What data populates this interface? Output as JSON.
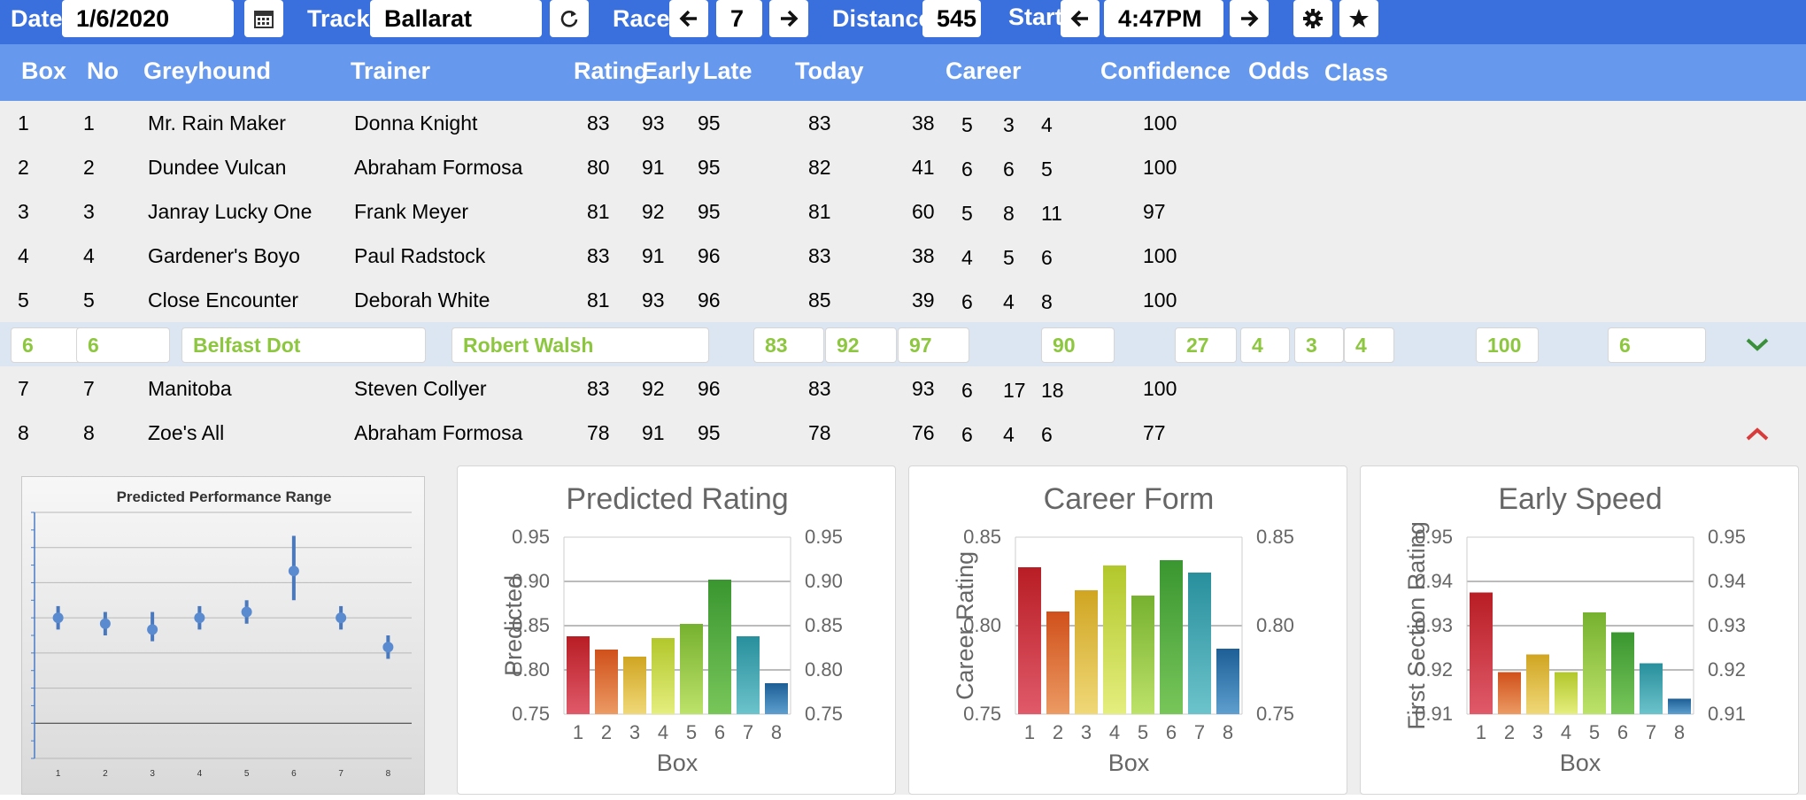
{
  "toolbar": {
    "date_label": "Date",
    "date_value": "1/6/2020",
    "track_label": "Track",
    "track_value": "Ballarat",
    "race_label": "Race",
    "race_value": "7",
    "distance_label": "Distance",
    "distance_value": "545",
    "start_label": "Start",
    "start_value": "4:47PM"
  },
  "table": {
    "headers": [
      "Box",
      "No",
      "Greyhound",
      "Trainer",
      "Rating",
      "Early",
      "Late",
      "Today",
      "Career",
      "Confidence",
      "Odds",
      "Class"
    ],
    "rows": [
      {
        "box": "1",
        "no": "1",
        "greyhound": "Mr. Rain Maker",
        "trainer": "Donna Knight",
        "rating": "83",
        "early": "93",
        "late": "95",
        "today": "83",
        "c1": "38",
        "c2": "5",
        "c3": "3",
        "c4": "4",
        "confidence": "100",
        "odds": ""
      },
      {
        "box": "2",
        "no": "2",
        "greyhound": "Dundee Vulcan",
        "trainer": "Abraham Formosa",
        "rating": "80",
        "early": "91",
        "late": "95",
        "today": "82",
        "c1": "41",
        "c2": "6",
        "c3": "6",
        "c4": "5",
        "confidence": "100",
        "odds": ""
      },
      {
        "box": "3",
        "no": "3",
        "greyhound": "Janray Lucky One",
        "trainer": "Frank Meyer",
        "rating": "81",
        "early": "92",
        "late": "95",
        "today": "81",
        "c1": "60",
        "c2": "5",
        "c3": "8",
        "c4": "11",
        "confidence": "97",
        "odds": ""
      },
      {
        "box": "4",
        "no": "4",
        "greyhound": "Gardener's Boyo",
        "trainer": "Paul Radstock",
        "rating": "83",
        "early": "91",
        "late": "96",
        "today": "83",
        "c1": "38",
        "c2": "4",
        "c3": "5",
        "c4": "6",
        "confidence": "100",
        "odds": ""
      },
      {
        "box": "5",
        "no": "5",
        "greyhound": "Close Encounter",
        "trainer": "Deborah White",
        "rating": "81",
        "early": "93",
        "late": "96",
        "today": "85",
        "c1": "39",
        "c2": "6",
        "c3": "4",
        "c4": "8",
        "confidence": "100",
        "odds": ""
      },
      {
        "box": "6",
        "no": "6",
        "greyhound": "Belfast Dot",
        "trainer": "Robert Walsh",
        "rating": "83",
        "early": "92",
        "late": "97",
        "today": "90",
        "c1": "27",
        "c2": "4",
        "c3": "3",
        "c4": "4",
        "confidence": "100",
        "odds": "6"
      },
      {
        "box": "7",
        "no": "7",
        "greyhound": "Manitoba",
        "trainer": "Steven Collyer",
        "rating": "83",
        "early": "92",
        "late": "96",
        "today": "83",
        "c1": "93",
        "c2": "6",
        "c3": "17",
        "c4": "18",
        "confidence": "100",
        "odds": ""
      },
      {
        "box": "8",
        "no": "8",
        "greyhound": "Zoe's All",
        "trainer": "Abraham Formosa",
        "rating": "78",
        "early": "91",
        "late": "95",
        "today": "78",
        "c1": "76",
        "c2": "6",
        "c3": "4",
        "c4": "6",
        "confidence": "77",
        "odds": ""
      }
    ],
    "selected_row_index": 5
  },
  "colors": {
    "toolbar_bg": "#3a70dd",
    "header_bg": "#6699ee",
    "selected_text": "#8dc63f",
    "expand_icon": "#3a8f3a",
    "collapse_icon": "#d93a3a"
  },
  "icons": {
    "calendar": "calendar-icon",
    "refresh": "refresh-icon",
    "prev": "arrow-left-icon",
    "next": "arrow-right-icon",
    "settings": "gear-icon",
    "favorite": "star-icon",
    "expand": "chevron-down-icon",
    "collapse": "chevron-up-icon"
  },
  "chart_data": [
    {
      "type": "scatter",
      "title": "Predicted Performance Range",
      "categories": [
        "1",
        "2",
        "3",
        "4",
        "5",
        "6",
        "7",
        "8"
      ],
      "values": [
        0.84,
        0.83,
        0.82,
        0.84,
        0.85,
        0.92,
        0.84,
        0.79
      ],
      "low": [
        0.82,
        0.81,
        0.8,
        0.82,
        0.83,
        0.87,
        0.82,
        0.77
      ],
      "high": [
        0.86,
        0.85,
        0.85,
        0.86,
        0.87,
        0.98,
        0.86,
        0.81
      ]
    },
    {
      "type": "bar",
      "title": "Predicted Rating",
      "categories": [
        "1",
        "2",
        "3",
        "4",
        "5",
        "6",
        "7",
        "8"
      ],
      "values": [
        0.838,
        0.823,
        0.815,
        0.836,
        0.852,
        0.902,
        0.838,
        0.785
      ],
      "xlabel": "Box",
      "ylabel": "Predicted",
      "ylim": [
        0.75,
        0.95
      ],
      "yticks": [
        "0.95",
        "0.90",
        "0.85",
        "0.80",
        "0.75"
      ]
    },
    {
      "type": "bar",
      "title": "Career Form",
      "categories": [
        "1",
        "2",
        "3",
        "4",
        "5",
        "6",
        "7",
        "8"
      ],
      "values": [
        0.833,
        0.808,
        0.82,
        0.834,
        0.817,
        0.837,
        0.83,
        0.787
      ],
      "xlabel": "Box",
      "ylabel": "Career Rating",
      "ylim": [
        0.75,
        0.85
      ],
      "yticks": [
        "0.85",
        "0.80",
        "0.75"
      ]
    },
    {
      "type": "bar",
      "title": "Early Speed",
      "categories": [
        "1",
        "2",
        "3",
        "4",
        "5",
        "6",
        "7",
        "8"
      ],
      "values": [
        0.9375,
        0.9195,
        0.9235,
        0.9195,
        0.933,
        0.9285,
        0.9215,
        0.9135
      ],
      "xlabel": "Box",
      "ylabel": "First Section Rating",
      "ylim": [
        0.91,
        0.95
      ],
      "yticks": [
        "0.95",
        "0.94",
        "0.93",
        "0.92",
        "0.91"
      ]
    }
  ]
}
